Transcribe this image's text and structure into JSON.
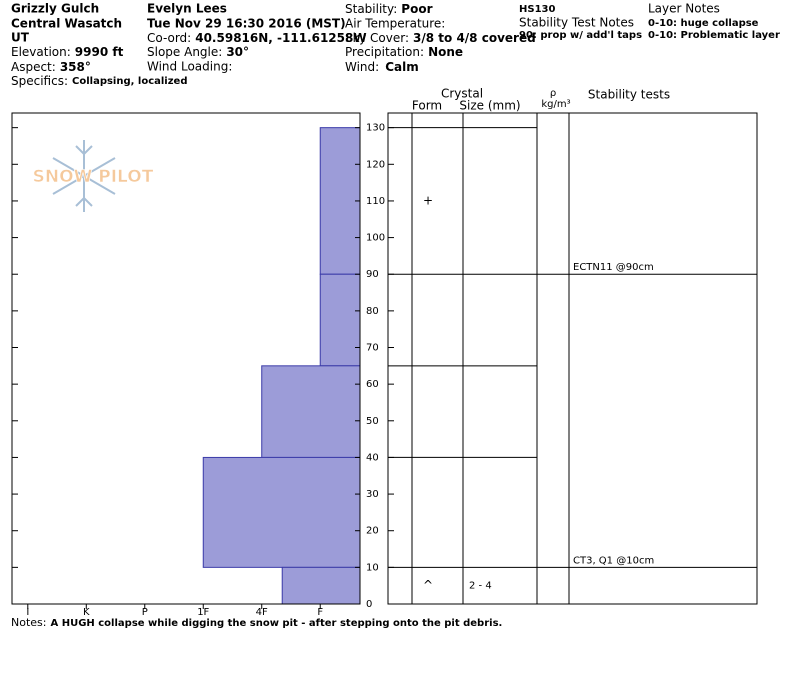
{
  "site": {
    "name": "Grizzly Gulch",
    "range": "Central Wasatch",
    "state": "UT",
    "elevation": {
      "label": "Elevation:",
      "value": "9990 ft"
    },
    "aspect": {
      "label": "Aspect:",
      "value": "358°"
    },
    "specifics": {
      "label": "Specifics:",
      "value": "Collapsing, localized"
    }
  },
  "observer": {
    "name": "Evelyn Lees",
    "date": "Tue Nov 29 16:30 2016 (MST)",
    "coord": {
      "label": "Co-ord:",
      "value": "40.59816N, -111.61258W"
    },
    "slope": {
      "label": "Slope Angle:",
      "value": "30°"
    },
    "wind_loading": {
      "label": "Wind Loading:"
    }
  },
  "conditions": {
    "stability": {
      "label": "Stability:",
      "value": "Poor"
    },
    "air_temp": {
      "label": "Air Temperature:"
    },
    "sky": {
      "label": "Sky Cover:",
      "value": "3/8 to 4/8 covered"
    },
    "precip": {
      "label": "Precipitation:",
      "value": "None"
    },
    "wind": {
      "label": "Wind:",
      "value": "Calm"
    }
  },
  "snowpack": {
    "hs": "HS130",
    "test_notes_title": "Stability Test Notes",
    "test_notes": [
      "90: prop w/ add'l taps"
    ]
  },
  "layer_notes": {
    "title": "Layer Notes",
    "notes": [
      "0-10: huge collapse",
      "0-10: Problematic layer"
    ]
  },
  "notes": {
    "label": "Notes:",
    "value": "A HUGH collapse while digging the snow pit - after stepping onto the pit debris."
  },
  "chart_data": {
    "type": "profile",
    "watermark": "SNOW PILOT",
    "columns": {
      "crystal": "Crystal",
      "form": "Form",
      "size": "Size (mm)",
      "density": "ρ",
      "density_unit": "kg/m³",
      "tests": "Stability tests"
    },
    "ylim": [
      0,
      134
    ],
    "yticks": [
      0,
      10,
      20,
      30,
      40,
      50,
      60,
      70,
      80,
      90,
      100,
      110,
      120,
      130
    ],
    "xlim": [
      6.27,
      0.32
    ],
    "xticks": [
      {
        "value": 6,
        "label": "I"
      },
      {
        "value": 5,
        "label": "K"
      },
      {
        "value": 4,
        "label": "P"
      },
      {
        "value": 3,
        "label": "1F"
      },
      {
        "value": 2,
        "label": "4F"
      },
      {
        "value": 1,
        "label": "F"
      }
    ],
    "color": "#9c9cd8",
    "layers": [
      {
        "top": 130,
        "bottom": 90,
        "hardness": 1
      },
      {
        "top": 90,
        "bottom": 65,
        "hardness": 1
      },
      {
        "top": 65,
        "bottom": 40,
        "hardness": 2
      },
      {
        "top": 40,
        "bottom": 10,
        "hardness": 3
      },
      {
        "top": 10,
        "bottom": 0,
        "hardness": 1.65
      }
    ],
    "crystals": [
      {
        "depth": 110,
        "form": "+"
      },
      {
        "depth": 5,
        "form": "^",
        "size": "2 - 4"
      }
    ],
    "stability_tests": [
      {
        "depth": 90,
        "label": "ECTN11 @90cm"
      },
      {
        "depth": 10,
        "label": "CT3, Q1 @10cm"
      }
    ]
  }
}
